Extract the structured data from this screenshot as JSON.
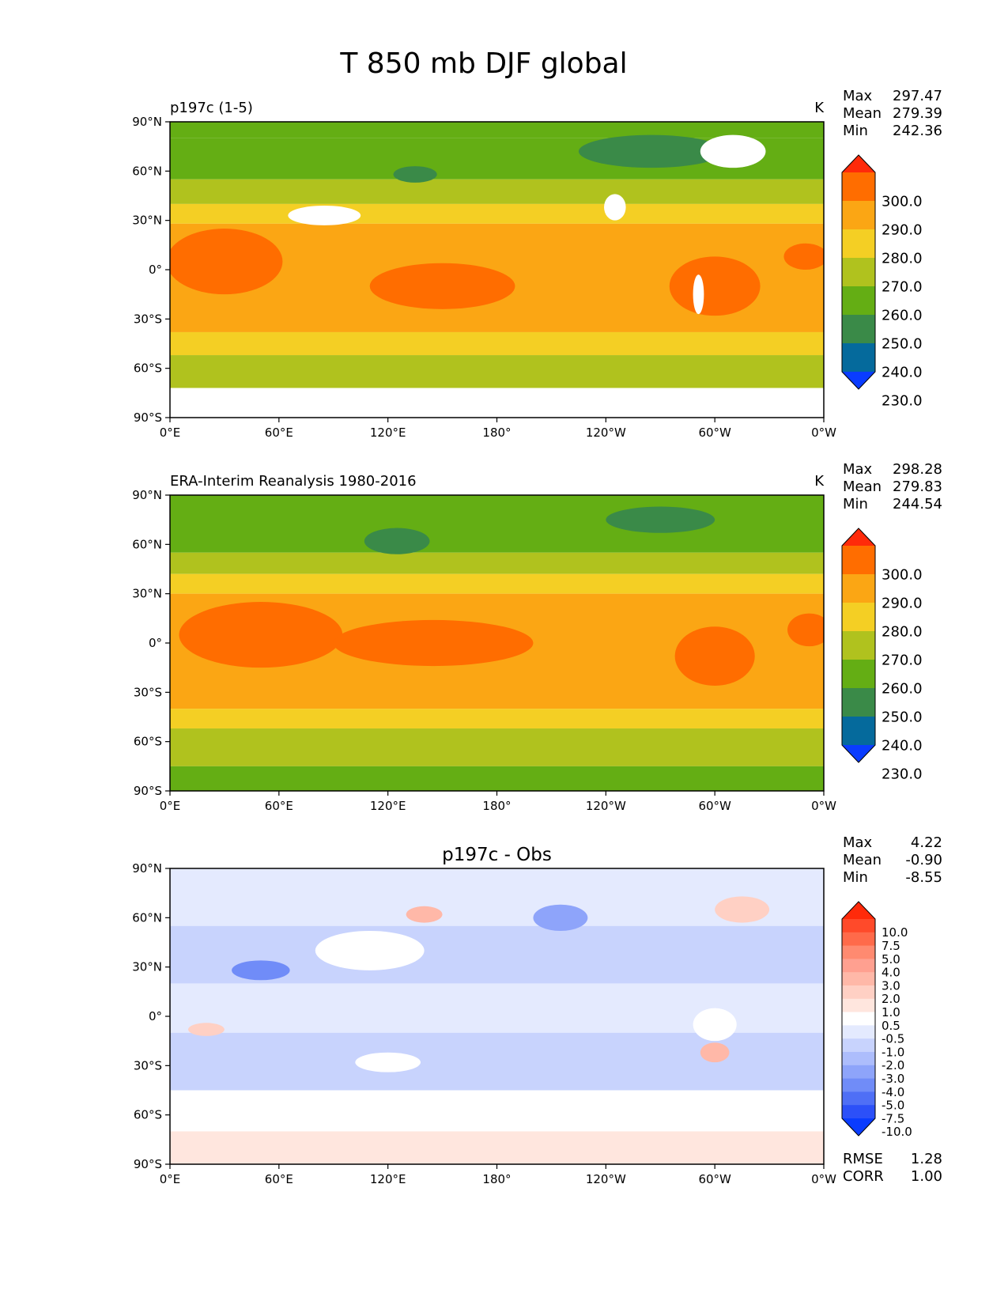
{
  "figure_title": "T 850 mb DJF global",
  "chart_data": [
    {
      "type": "heatmap",
      "id": "model",
      "title_left": "p197c (1-5)",
      "title_center": "",
      "units": "K",
      "stats": [
        {
          "label": "Max",
          "value": "297.47"
        },
        {
          "label": "Mean",
          "value": "279.39"
        },
        {
          "label": "Min",
          "value": "242.36"
        }
      ],
      "xticks": [
        "0°E",
        "60°E",
        "120°E",
        "180°",
        "120°W",
        "60°W",
        "0°W"
      ],
      "yticks": [
        "90°N",
        "60°N",
        "30°N",
        "0°",
        "30°S",
        "60°S",
        "90°S"
      ],
      "xlim": [
        0,
        360
      ],
      "ylim": [
        -90,
        90
      ],
      "colorbar": {
        "levels": [
          "300.0",
          "290.0",
          "280.0",
          "270.0",
          "260.0",
          "250.0",
          "240.0",
          "230.0"
        ],
        "colors": [
          "#ff2a0a",
          "#ff6d00",
          "#fba614",
          "#f4cf24",
          "#b0c21e",
          "#64ae14",
          "#3a8a48",
          "#056a9c",
          "#0a3cff"
        ]
      },
      "bands": [
        {
          "lat_top": 90,
          "lat_bottom": 80,
          "color": "#64ae14"
        },
        {
          "lat_top": 80,
          "lat_bottom": 55,
          "color": "#64ae14"
        },
        {
          "lat_top": 55,
          "lat_bottom": 40,
          "color": "#b0c21e"
        },
        {
          "lat_top": 40,
          "lat_bottom": 28,
          "color": "#f4cf24"
        },
        {
          "lat_top": 28,
          "lat_bottom": -38,
          "color": "#fba614"
        },
        {
          "lat_top": -38,
          "lat_bottom": -52,
          "color": "#f4cf24"
        },
        {
          "lat_top": -52,
          "lat_bottom": -72,
          "color": "#b0c21e"
        },
        {
          "lat_top": -72,
          "lat_bottom": -90,
          "color": "#ffffff"
        }
      ],
      "patches": [
        {
          "lon": 135,
          "lat": 58,
          "rlon": 12,
          "rlat": 5,
          "color": "#3a8a48"
        },
        {
          "lon": 265,
          "lat": 72,
          "rlon": 40,
          "rlat": 10,
          "color": "#3a8a48"
        },
        {
          "lon": 30,
          "lat": 5,
          "rlon": 32,
          "rlat": 20,
          "color": "#ff6d00"
        },
        {
          "lon": 150,
          "lat": -10,
          "rlon": 40,
          "rlat": 14,
          "color": "#ff6d00"
        },
        {
          "lon": 300,
          "lat": -10,
          "rlon": 25,
          "rlat": 18,
          "color": "#ff6d00"
        },
        {
          "lon": 350,
          "lat": 8,
          "rlon": 12,
          "rlat": 8,
          "color": "#ff6d00"
        },
        {
          "lon": 310,
          "lat": 72,
          "rlon": 18,
          "rlat": 10,
          "color": "#ffffff"
        },
        {
          "lon": 85,
          "lat": 33,
          "rlon": 20,
          "rlat": 6,
          "color": "#ffffff"
        },
        {
          "lon": 245,
          "lat": 38,
          "rlon": 6,
          "rlat": 8,
          "color": "#ffffff"
        },
        {
          "lon": 291,
          "lat": -15,
          "rlon": 3,
          "rlat": 12,
          "color": "#ffffff"
        }
      ]
    },
    {
      "type": "heatmap",
      "id": "obs",
      "title_left": "ERA-Interim Reanalysis 1980-2016",
      "title_center": "",
      "units": "K",
      "stats": [
        {
          "label": "Max",
          "value": "298.28"
        },
        {
          "label": "Mean",
          "value": "279.83"
        },
        {
          "label": "Min",
          "value": "244.54"
        }
      ],
      "xticks": [
        "0°E",
        "60°E",
        "120°E",
        "180°",
        "120°W",
        "60°W",
        "0°W"
      ],
      "yticks": [
        "90°N",
        "60°N",
        "30°N",
        "0°",
        "30°S",
        "60°S",
        "90°S"
      ],
      "xlim": [
        0,
        360
      ],
      "ylim": [
        -90,
        90
      ],
      "colorbar": {
        "levels": [
          "300.0",
          "290.0",
          "280.0",
          "270.0",
          "260.0",
          "250.0",
          "240.0",
          "230.0"
        ],
        "colors": [
          "#ff2a0a",
          "#ff6d00",
          "#fba614",
          "#f4cf24",
          "#b0c21e",
          "#64ae14",
          "#3a8a48",
          "#056a9c",
          "#0a3cff"
        ]
      },
      "bands": [
        {
          "lat_top": 90,
          "lat_bottom": 55,
          "color": "#64ae14"
        },
        {
          "lat_top": 55,
          "lat_bottom": 42,
          "color": "#b0c21e"
        },
        {
          "lat_top": 42,
          "lat_bottom": 30,
          "color": "#f4cf24"
        },
        {
          "lat_top": 30,
          "lat_bottom": -40,
          "color": "#fba614"
        },
        {
          "lat_top": -40,
          "lat_bottom": -52,
          "color": "#f4cf24"
        },
        {
          "lat_top": -52,
          "lat_bottom": -75,
          "color": "#b0c21e"
        },
        {
          "lat_top": -75,
          "lat_bottom": -90,
          "color": "#64ae14"
        }
      ],
      "patches": [
        {
          "lon": 125,
          "lat": 62,
          "rlon": 18,
          "rlat": 8,
          "color": "#3a8a48"
        },
        {
          "lon": 270,
          "lat": 75,
          "rlon": 30,
          "rlat": 8,
          "color": "#3a8a48"
        },
        {
          "lon": 50,
          "lat": 5,
          "rlon": 45,
          "rlat": 20,
          "color": "#ff6d00"
        },
        {
          "lon": 145,
          "lat": 0,
          "rlon": 55,
          "rlat": 14,
          "color": "#ff6d00"
        },
        {
          "lon": 300,
          "lat": -8,
          "rlon": 22,
          "rlat": 18,
          "color": "#ff6d00"
        },
        {
          "lon": 352,
          "lat": 8,
          "rlon": 12,
          "rlat": 10,
          "color": "#ff6d00"
        }
      ]
    },
    {
      "type": "heatmap",
      "id": "diff",
      "title_left": "",
      "title_center": "p197c - Obs",
      "units": "",
      "stats": [
        {
          "label": "Max",
          "value": "4.22"
        },
        {
          "label": "Mean",
          "value": "-0.90"
        },
        {
          "label": "Min",
          "value": "-8.55"
        }
      ],
      "extra_stats": [
        {
          "label": "RMSE",
          "value": "1.28"
        },
        {
          "label": "CORR",
          "value": "1.00"
        }
      ],
      "xticks": [
        "0°E",
        "60°E",
        "120°E",
        "180°",
        "120°W",
        "60°W",
        "0°W"
      ],
      "yticks": [
        "90°N",
        "60°N",
        "30°N",
        "0°",
        "30°S",
        "60°S",
        "90°S"
      ],
      "xlim": [
        0,
        360
      ],
      "ylim": [
        -90,
        90
      ],
      "colorbar": {
        "levels": [
          "10.0",
          "7.5",
          "5.0",
          "4.0",
          "3.0",
          "2.0",
          "1.0",
          "0.5",
          "-0.5",
          "-1.0",
          "-2.0",
          "-3.0",
          "-4.0",
          "-5.0",
          "-7.5",
          "-10.0"
        ],
        "colors": [
          "#ff2a0a",
          "#ff4a2a",
          "#ff6a4a",
          "#ff8a70",
          "#ffa090",
          "#ffb8a8",
          "#ffd0c4",
          "#ffe6de",
          "#ffffff",
          "#e4eafe",
          "#c8d3fd",
          "#adbdfc",
          "#8ea4fa",
          "#708cf8",
          "#4f6ff6",
          "#2c50f8",
          "#0a3cff"
        ]
      },
      "bands": [
        {
          "lat_top": 90,
          "lat_bottom": 55,
          "color": "#e4eafe"
        },
        {
          "lat_top": 55,
          "lat_bottom": 20,
          "color": "#c8d3fd"
        },
        {
          "lat_top": 20,
          "lat_bottom": -10,
          "color": "#e4eafe"
        },
        {
          "lat_top": -10,
          "lat_bottom": -45,
          "color": "#c8d3fd"
        },
        {
          "lat_top": -45,
          "lat_bottom": -70,
          "color": "#ffffff"
        },
        {
          "lat_top": -70,
          "lat_bottom": -90,
          "color": "#ffe6de"
        }
      ],
      "patches": [
        {
          "lon": 50,
          "lat": 28,
          "rlon": 16,
          "rlat": 6,
          "color": "#708cf8"
        },
        {
          "lon": 215,
          "lat": 60,
          "rlon": 15,
          "rlat": 8,
          "color": "#8ea4fa"
        },
        {
          "lon": 110,
          "lat": 40,
          "rlon": 30,
          "rlat": 12,
          "color": "#ffffff"
        },
        {
          "lon": 140,
          "lat": 62,
          "rlon": 10,
          "rlat": 5,
          "color": "#ffb8a8"
        },
        {
          "lon": 300,
          "lat": -22,
          "rlon": 8,
          "rlat": 6,
          "color": "#ffb8a8"
        },
        {
          "lon": 20,
          "lat": -8,
          "rlon": 10,
          "rlat": 4,
          "color": "#ffd0c4"
        },
        {
          "lon": 315,
          "lat": 65,
          "rlon": 15,
          "rlat": 8,
          "color": "#ffd0c4"
        },
        {
          "lon": 120,
          "lat": -28,
          "rlon": 18,
          "rlat": 6,
          "color": "#ffffff"
        },
        {
          "lon": 300,
          "lat": -5,
          "rlon": 12,
          "rlat": 10,
          "color": "#ffffff"
        }
      ]
    }
  ]
}
